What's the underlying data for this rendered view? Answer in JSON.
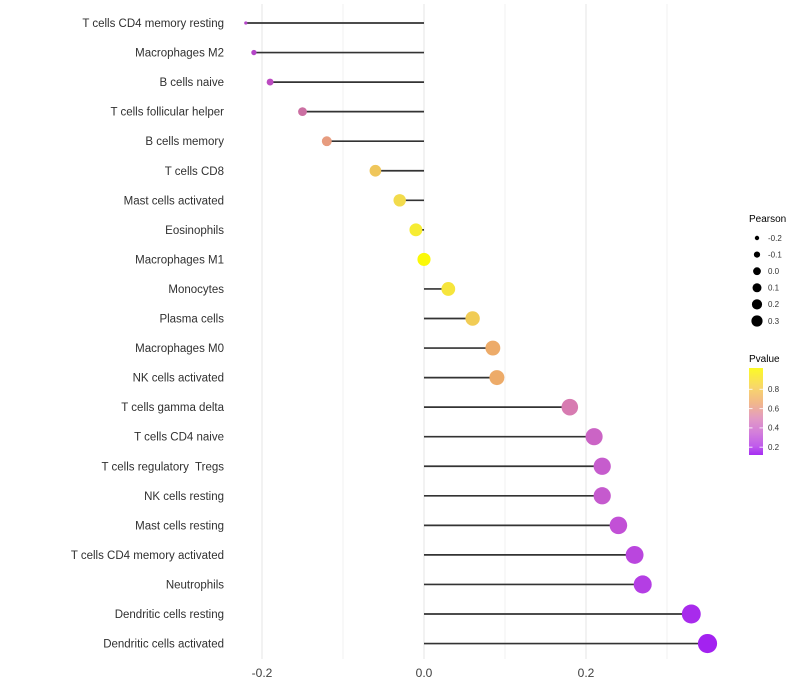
{
  "figure": {
    "title": "",
    "background": "#ffffff"
  },
  "chart_data": {
    "type": "scatter",
    "variant": "lollipop",
    "title": "",
    "xlabel": "",
    "ylabel": "",
    "xlim": [
      -0.237,
      0.363
    ],
    "grid": "vertical gridlines only, light gray, majors at labeled ticks with minors between",
    "x_major_ticks": [
      -0.2,
      0.0,
      0.2
    ],
    "x_tick_labels": [
      "-0.2",
      "0.0",
      "0.2"
    ],
    "x_minor_ticks": [
      -0.1,
      0.1,
      0.3
    ],
    "size_domain": [
      -0.22,
      0.35
    ],
    "points": [
      {
        "label": "T cells CD4 memory resting",
        "pearson": -0.22,
        "pvalue_est": 0.35,
        "color": "#B445C7"
      },
      {
        "label": "Macrophages M2",
        "pearson": -0.21,
        "pvalue_est": 0.35,
        "color": "#B445C7"
      },
      {
        "label": "B cells naive",
        "pearson": -0.19,
        "pvalue_est": 0.37,
        "color": "#BC4BC1"
      },
      {
        "label": "T cells follicular helper",
        "pearson": -0.15,
        "pvalue_est": 0.52,
        "color": "#CB6FA2"
      },
      {
        "label": "B cells memory",
        "pearson": -0.12,
        "pvalue_est": 0.65,
        "color": "#E79C7F"
      },
      {
        "label": "T cells CD8",
        "pearson": -0.06,
        "pvalue_est": 0.74,
        "color": "#EFC65B"
      },
      {
        "label": "Mast cells activated",
        "pearson": -0.03,
        "pvalue_est": 0.79,
        "color": "#F2DB4C"
      },
      {
        "label": "Eosinophils",
        "pearson": -0.01,
        "pvalue_est": 0.86,
        "color": "#F6EC33"
      },
      {
        "label": "Macrophages M1",
        "pearson": 0.0,
        "pvalue_est": 0.95,
        "color": "#FBF908"
      },
      {
        "label": "Monocytes",
        "pearson": 0.03,
        "pvalue_est": 0.83,
        "color": "#F6E53C"
      },
      {
        "label": "Plasma cells",
        "pearson": 0.06,
        "pvalue_est": 0.76,
        "color": "#F1CC55"
      },
      {
        "label": "Macrophages M0",
        "pearson": 0.085,
        "pvalue_est": 0.66,
        "color": "#EDAB69"
      },
      {
        "label": "NK cells activated",
        "pearson": 0.09,
        "pvalue_est": 0.66,
        "color": "#EDAB69"
      },
      {
        "label": "T cells gamma delta",
        "pearson": 0.18,
        "pvalue_est": 0.5,
        "color": "#D77BB1"
      },
      {
        "label": "T cells CD4 naive",
        "pearson": 0.21,
        "pvalue_est": 0.42,
        "color": "#CB64C5"
      },
      {
        "label": "T cells regulatory  Tregs",
        "pearson": 0.22,
        "pvalue_est": 0.41,
        "color": "#C65CCD"
      },
      {
        "label": "NK cells resting",
        "pearson": 0.22,
        "pvalue_est": 0.4,
        "color": "#C55ACE"
      },
      {
        "label": "Mast cells resting",
        "pearson": 0.24,
        "pvalue_est": 0.37,
        "color": "#C250D6"
      },
      {
        "label": "T cells CD4 memory activated",
        "pearson": 0.26,
        "pvalue_est": 0.33,
        "color": "#BA46DE"
      },
      {
        "label": "Neutrophils",
        "pearson": 0.27,
        "pvalue_est": 0.31,
        "color": "#B43EE4"
      },
      {
        "label": "Dendritic cells resting",
        "pearson": 0.33,
        "pvalue_est": 0.26,
        "color": "#A82BEC"
      },
      {
        "label": "Dendritic cells activated",
        "pearson": 0.35,
        "pvalue_est": 0.24,
        "color": "#A322F0"
      }
    ],
    "legend_size": {
      "title": "Pearson",
      "entries": [
        "-0.2",
        "-0.1",
        "0.0",
        "0.1",
        "0.2",
        "0.3"
      ],
      "dot_color": "#000000",
      "position": "right"
    },
    "legend_color": {
      "title": "Pvalue",
      "tick_labels": [
        "0.8",
        "0.6",
        "0.4",
        "0.2"
      ],
      "gradient_top_color": "#FCFA25",
      "gradient_mid_colors": [
        "#F8D76A",
        "#F2B88A",
        "#E29AC4",
        "#D37FDA",
        "#C05BEC"
      ],
      "gradient_bottom_color": "#A52DF2",
      "position": "right"
    },
    "stem_color": "#333333",
    "axis_text_color": "#404040",
    "category_text_color": "#303030"
  }
}
